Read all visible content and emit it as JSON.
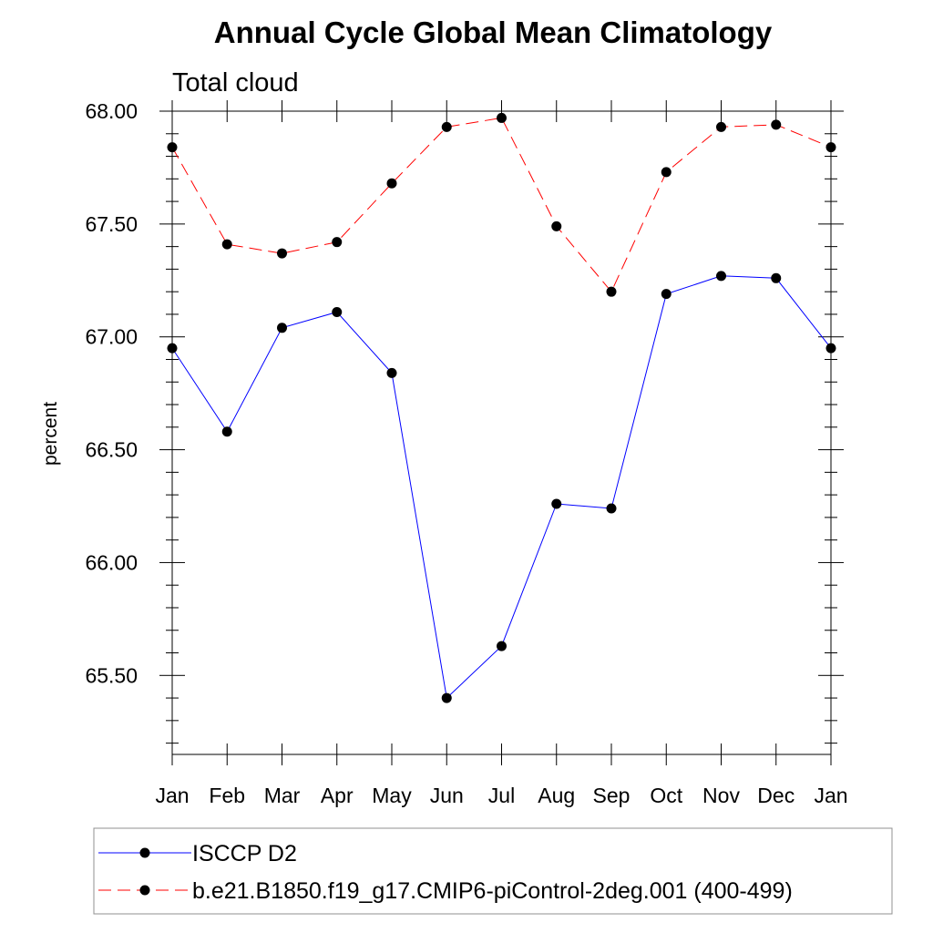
{
  "chart_data": {
    "type": "line",
    "title": "Annual Cycle Global Mean Climatology",
    "subtitle": "Total cloud",
    "xlabel": "",
    "ylabel": "percent",
    "categories": [
      "Jan",
      "Feb",
      "Mar",
      "Apr",
      "May",
      "Jun",
      "Jul",
      "Aug",
      "Sep",
      "Oct",
      "Nov",
      "Dec",
      "Jan"
    ],
    "yticks": [
      "65.50",
      "66.00",
      "66.50",
      "67.00",
      "67.50",
      "68.00"
    ],
    "ylim": [
      65.15,
      68.0
    ],
    "grid": false,
    "legend_position": "bottom",
    "series": [
      {
        "name": "ISCCP D2",
        "color": "#0000ff",
        "line_style": "solid",
        "marker": "filled-circle",
        "values": [
          66.95,
          66.58,
          67.04,
          67.11,
          66.84,
          65.4,
          65.63,
          66.26,
          66.24,
          67.19,
          67.27,
          67.26,
          66.95
        ]
      },
      {
        "name": "b.e21.B1850.f19_g17.CMIP6-piControl-2deg.001 (400-499)",
        "color": "#ff0000",
        "line_style": "dashed",
        "marker": "filled-circle",
        "values": [
          67.84,
          67.41,
          67.37,
          67.42,
          67.68,
          67.93,
          67.97,
          67.49,
          67.2,
          67.73,
          67.93,
          67.94,
          67.84
        ]
      }
    ]
  }
}
